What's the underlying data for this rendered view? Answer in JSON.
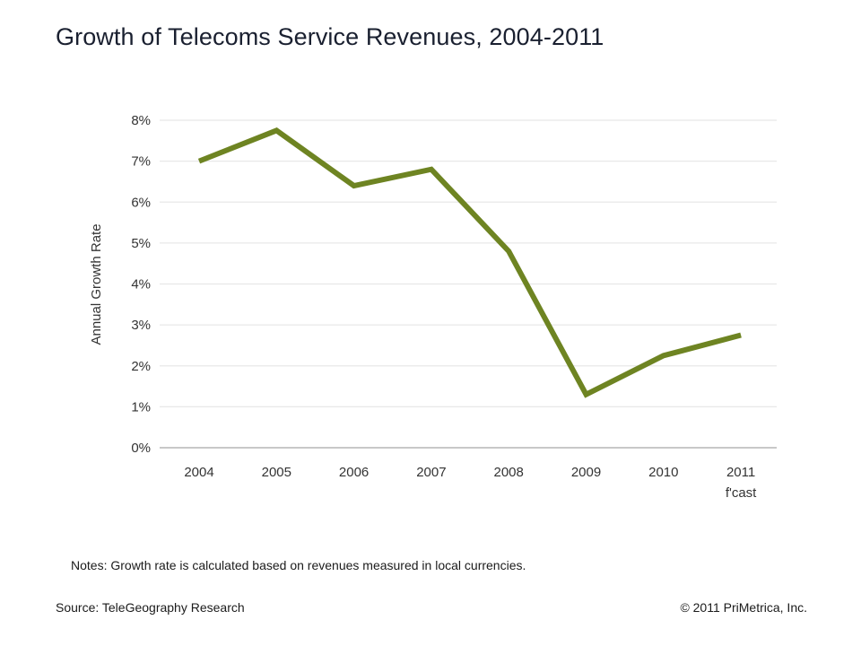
{
  "chart_data": {
    "type": "line",
    "title": "Growth of Telecoms Service Revenues, 2004-2011",
    "xlabel": "",
    "ylabel": "Annual Growth Rate",
    "categories": [
      "2004",
      "2005",
      "2006",
      "2007",
      "2008",
      "2009",
      "2010",
      "2011"
    ],
    "category_sublabels": [
      "",
      "",
      "",
      "",
      "",
      "",
      "",
      "f'cast"
    ],
    "series": [
      {
        "name": "Annual Growth Rate",
        "color": "#6e8422",
        "values": [
          7.0,
          7.75,
          6.4,
          6.8,
          4.8,
          1.3,
          2.25,
          2.75
        ]
      }
    ],
    "ylim": [
      0,
      8
    ],
    "yticks": [
      0,
      1,
      2,
      3,
      4,
      5,
      6,
      7,
      8
    ],
    "ytick_labels": [
      "0%",
      "1%",
      "2%",
      "3%",
      "4%",
      "5%",
      "6%",
      "7%",
      "8%"
    ],
    "grid": true,
    "legend": "none",
    "colors": {
      "line": "#6e8422",
      "grid": "#e8e8e8",
      "axis": "#c8c8c8",
      "text": "#333333"
    }
  },
  "footer": {
    "notes": "Notes: Growth rate is calculated based on revenues measured in local currencies.",
    "source": "Source: TeleGeography Research",
    "copyright": "© 2011 PriMetrica, Inc."
  }
}
